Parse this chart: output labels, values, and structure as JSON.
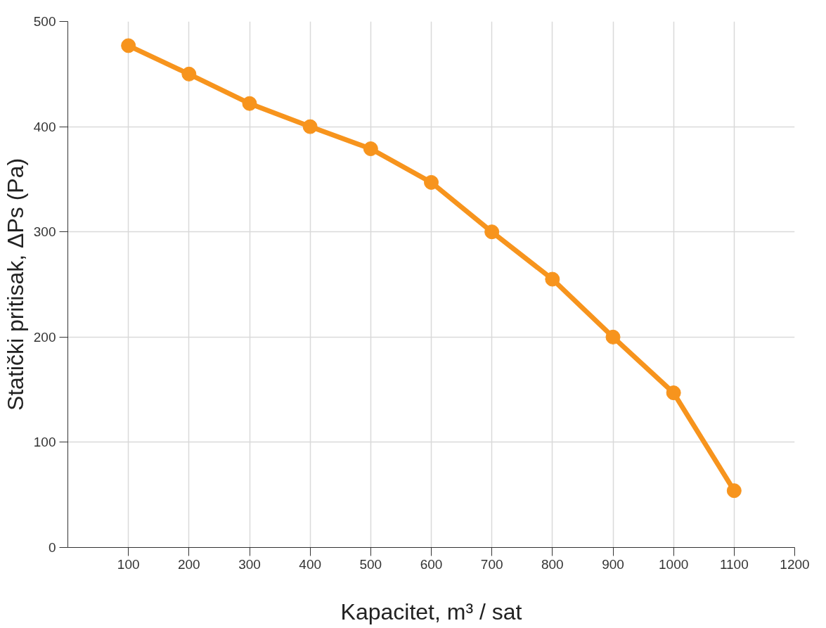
{
  "chart_data": {
    "type": "line",
    "xlabel": "Kapacitet, m³ / sat",
    "ylabel": "Statički pritisak, ΔPs (Pa)",
    "x": [
      100,
      200,
      300,
      400,
      500,
      600,
      700,
      800,
      900,
      1000,
      1100
    ],
    "series": [
      {
        "color": "#f7941d",
        "values": [
          477,
          450,
          422,
          400,
          379,
          347,
          300,
          255,
          200,
          147,
          54
        ]
      }
    ],
    "xlim": [
      0,
      1200
    ],
    "xticks": [
      100,
      200,
      300,
      400,
      500,
      600,
      700,
      800,
      900,
      1000,
      1100,
      1200
    ],
    "ylim": [
      0,
      500
    ],
    "yticks": [
      0,
      100,
      200,
      300,
      400,
      500
    ],
    "grid": true,
    "marker": "circle",
    "line_style": "solid"
  }
}
